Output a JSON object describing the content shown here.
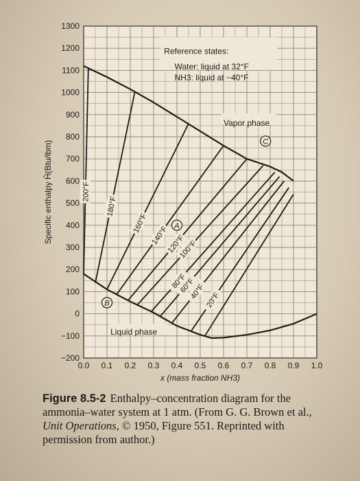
{
  "chart_data": {
    "type": "line",
    "xlabel": "x (mass fraction NH3)",
    "ylabel": "Specific enthalpy Ĥ(Btu/lbm)",
    "xlim": [
      0,
      1
    ],
    "ylim": [
      -200,
      1300
    ],
    "x_ticks": [
      "0.0",
      "0.1",
      "0.2",
      "0.3",
      "0.4",
      "0.5",
      "0.6",
      "0.7",
      "0.8",
      "0.9",
      "1.0"
    ],
    "y_ticks": [
      "1300",
      "1200",
      "1100",
      "1000",
      "900",
      "800",
      "700",
      "600",
      "500",
      "400",
      "300",
      "200",
      "100",
      "0",
      "−100",
      "−200"
    ],
    "grid": true,
    "annotations": {
      "reference_title": "Reference states:",
      "reference_water": "Water: liquid at 32°F",
      "reference_nh3": "NH3: liquid at −40°F",
      "vapor": "Vapor phase",
      "liquid": "Liquid phase",
      "point_a": "A",
      "point_b": "B",
      "point_c": "C"
    },
    "vapor_curve": [
      [
        0,
        1120
      ],
      [
        0.1,
        1070
      ],
      [
        0.2,
        1015
      ],
      [
        0.3,
        955
      ],
      [
        0.4,
        890
      ],
      [
        0.5,
        825
      ],
      [
        0.6,
        760
      ],
      [
        0.7,
        700
      ],
      [
        0.8,
        665
      ],
      [
        0.85,
        640
      ],
      [
        0.9,
        600
      ]
    ],
    "liquid_curve": [
      [
        0,
        180
      ],
      [
        0.1,
        110
      ],
      [
        0.2,
        55
      ],
      [
        0.3,
        5
      ],
      [
        0.4,
        -55
      ],
      [
        0.5,
        -95
      ],
      [
        0.55,
        -110
      ],
      [
        0.6,
        -108
      ],
      [
        0.7,
        -95
      ],
      [
        0.8,
        -75
      ],
      [
        0.9,
        -45
      ],
      [
        1.0,
        0
      ]
    ],
    "tie_lines": [
      {
        "name": "200°F",
        "x_liquid": 0.0,
        "h_liquid": 180,
        "x_vapor": 0.02,
        "h_vapor": 1110
      },
      {
        "name": "180°F",
        "x_liquid": 0.05,
        "h_liquid": 140,
        "x_vapor": 0.22,
        "h_vapor": 1005
      },
      {
        "name": "160°F",
        "x_liquid": 0.1,
        "h_liquid": 110,
        "x_vapor": 0.45,
        "h_vapor": 860
      },
      {
        "name": "140°F",
        "x_liquid": 0.14,
        "h_liquid": 85,
        "x_vapor": 0.6,
        "h_vapor": 760
      },
      {
        "name": "120°F",
        "x_liquid": 0.19,
        "h_liquid": 60,
        "x_vapor": 0.7,
        "h_vapor": 700
      },
      {
        "name": "100°F",
        "x_liquid": 0.23,
        "h_liquid": 40,
        "x_vapor": 0.77,
        "h_vapor": 670
      },
      {
        "name": "80°F",
        "x_liquid": 0.29,
        "h_liquid": 10,
        "x_vapor": 0.82,
        "h_vapor": 640
      },
      {
        "name": "60°F",
        "x_liquid": 0.33,
        "h_liquid": -10,
        "x_vapor": 0.84,
        "h_vapor": 620
      },
      {
        "name": "40°F",
        "x_liquid": 0.38,
        "h_liquid": -40,
        "x_vapor": 0.86,
        "h_vapor": 600
      },
      {
        "name": "20°F",
        "x_liquid": 0.46,
        "h_liquid": -80,
        "x_vapor": 0.88,
        "h_vapor": 570
      },
      {
        "name": "",
        "x_liquid": 0.52,
        "h_liquid": -100,
        "x_vapor": 0.9,
        "h_vapor": 540
      }
    ],
    "points": [
      {
        "label": "A",
        "x": 0.4,
        "h": 400
      },
      {
        "label": "B",
        "x": 0.1,
        "h": 50
      },
      {
        "label": "C",
        "x": 0.78,
        "h": 780
      }
    ]
  },
  "caption": {
    "figure": "Figure 8.5-2",
    "line1": "Enthalpy–concentration diagram for the ammonia–water system at 1 atm. (From G. G. Brown et al.,",
    "title_italic": "Unit Operations",
    "line2": ", © 1950, Figure 551. Reprinted with permission from author.)"
  }
}
